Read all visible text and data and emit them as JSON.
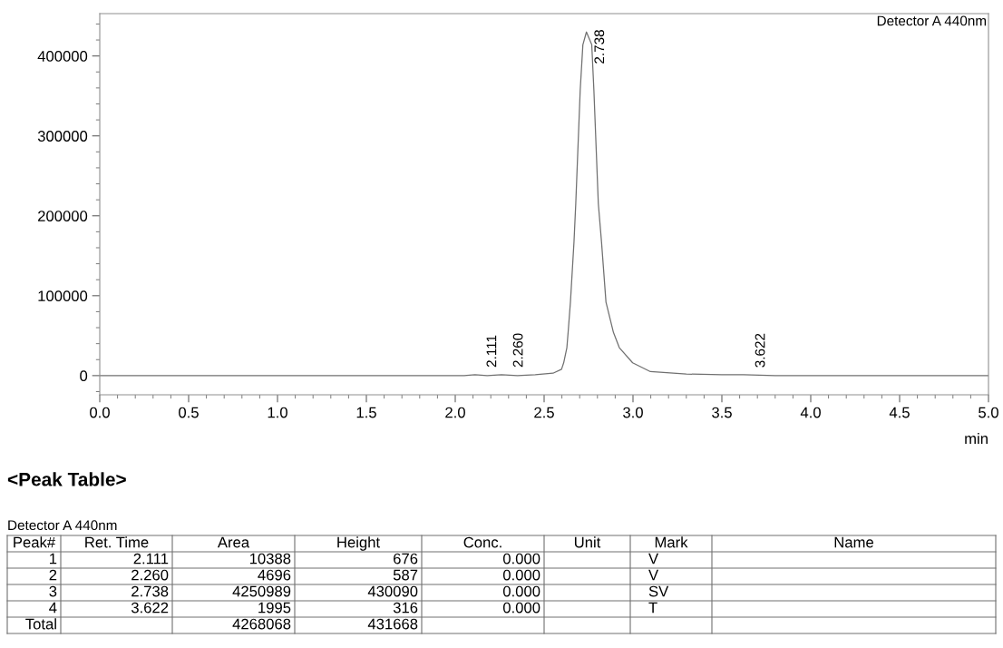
{
  "chart_data": {
    "type": "line",
    "xlabel": "min",
    "xlim": [
      0.0,
      5.0
    ],
    "xticks": [
      {
        "value": 0,
        "label": "0.0"
      },
      {
        "value": 0.5,
        "label": "0.5"
      },
      {
        "value": 1,
        "label": "1.0"
      },
      {
        "value": 1.5,
        "label": "1.5"
      },
      {
        "value": 2,
        "label": "2.0"
      },
      {
        "value": 2.5,
        "label": "2.5"
      },
      {
        "value": 3,
        "label": "3.0"
      },
      {
        "value": 3.5,
        "label": "3.5"
      },
      {
        "value": 4,
        "label": "4.0"
      },
      {
        "value": 4.5,
        "label": "4.5"
      },
      {
        "value": 5,
        "label": "5.0"
      }
    ],
    "ylim": [
      -24000,
      453000
    ],
    "yticks": [
      0,
      100000,
      200000,
      300000,
      400000
    ],
    "grid": false,
    "marker": "none",
    "line_style": "solid",
    "series": [
      {
        "color": "#707070",
        "x": [
          0.0,
          0.5,
          1.0,
          1.5,
          1.95,
          2.05,
          2.111,
          2.18,
          2.26,
          2.35,
          2.45,
          2.55,
          2.598,
          2.61,
          2.628,
          2.635,
          2.648,
          2.668,
          2.678,
          2.703,
          2.718,
          2.738,
          2.768,
          2.78,
          2.805,
          2.823,
          2.848,
          2.89,
          2.923,
          2.998,
          3.098,
          3.3,
          3.5,
          3.622,
          3.8,
          4.0,
          4.3,
          4.6,
          5.0
        ],
        "values": [
          0,
          0,
          0,
          0,
          0,
          0,
          1000,
          0,
          1000,
          0,
          1000,
          3000,
          8000,
          16000,
          35000,
          54000,
          92000,
          167000,
          215000,
          357000,
          414000,
          430000,
          414000,
          357000,
          215000,
          167000,
          92000,
          54000,
          35000,
          16000,
          5000,
          2000,
          1000,
          1000,
          0,
          0,
          0,
          0,
          0
        ]
      }
    ],
    "annotations": [
      {
        "text": "2.111",
        "x": 2.111,
        "y": 676
      },
      {
        "text": "2.260",
        "x": 2.26,
        "y": 587
      },
      {
        "text": "2.738",
        "x": 2.738,
        "y": 430090
      },
      {
        "text": "3.622",
        "x": 3.622,
        "y": 316
      },
      "Detector A 440nm",
      "<Peak Table>",
      "Detector A 440nm",
      "Peak#",
      "Ret. Time",
      "Area",
      "Height",
      "Conc.",
      "Unit",
      "Mark",
      "Name",
      "1",
      "2.111",
      "10388",
      "676",
      "0.000",
      null,
      "V",
      null,
      "2",
      "2.260",
      "4696",
      "587",
      "0.000",
      null,
      "V",
      null,
      "3",
      "2.738",
      "4250989",
      "430090",
      "0.000",
      null,
      "SV",
      null,
      "4",
      "3.622",
      "1995",
      "316",
      "0.000",
      null,
      "T",
      null,
      "Total",
      null,
      "4268068",
      "431668",
      null,
      null,
      null,
      null
    ]
  }
}
